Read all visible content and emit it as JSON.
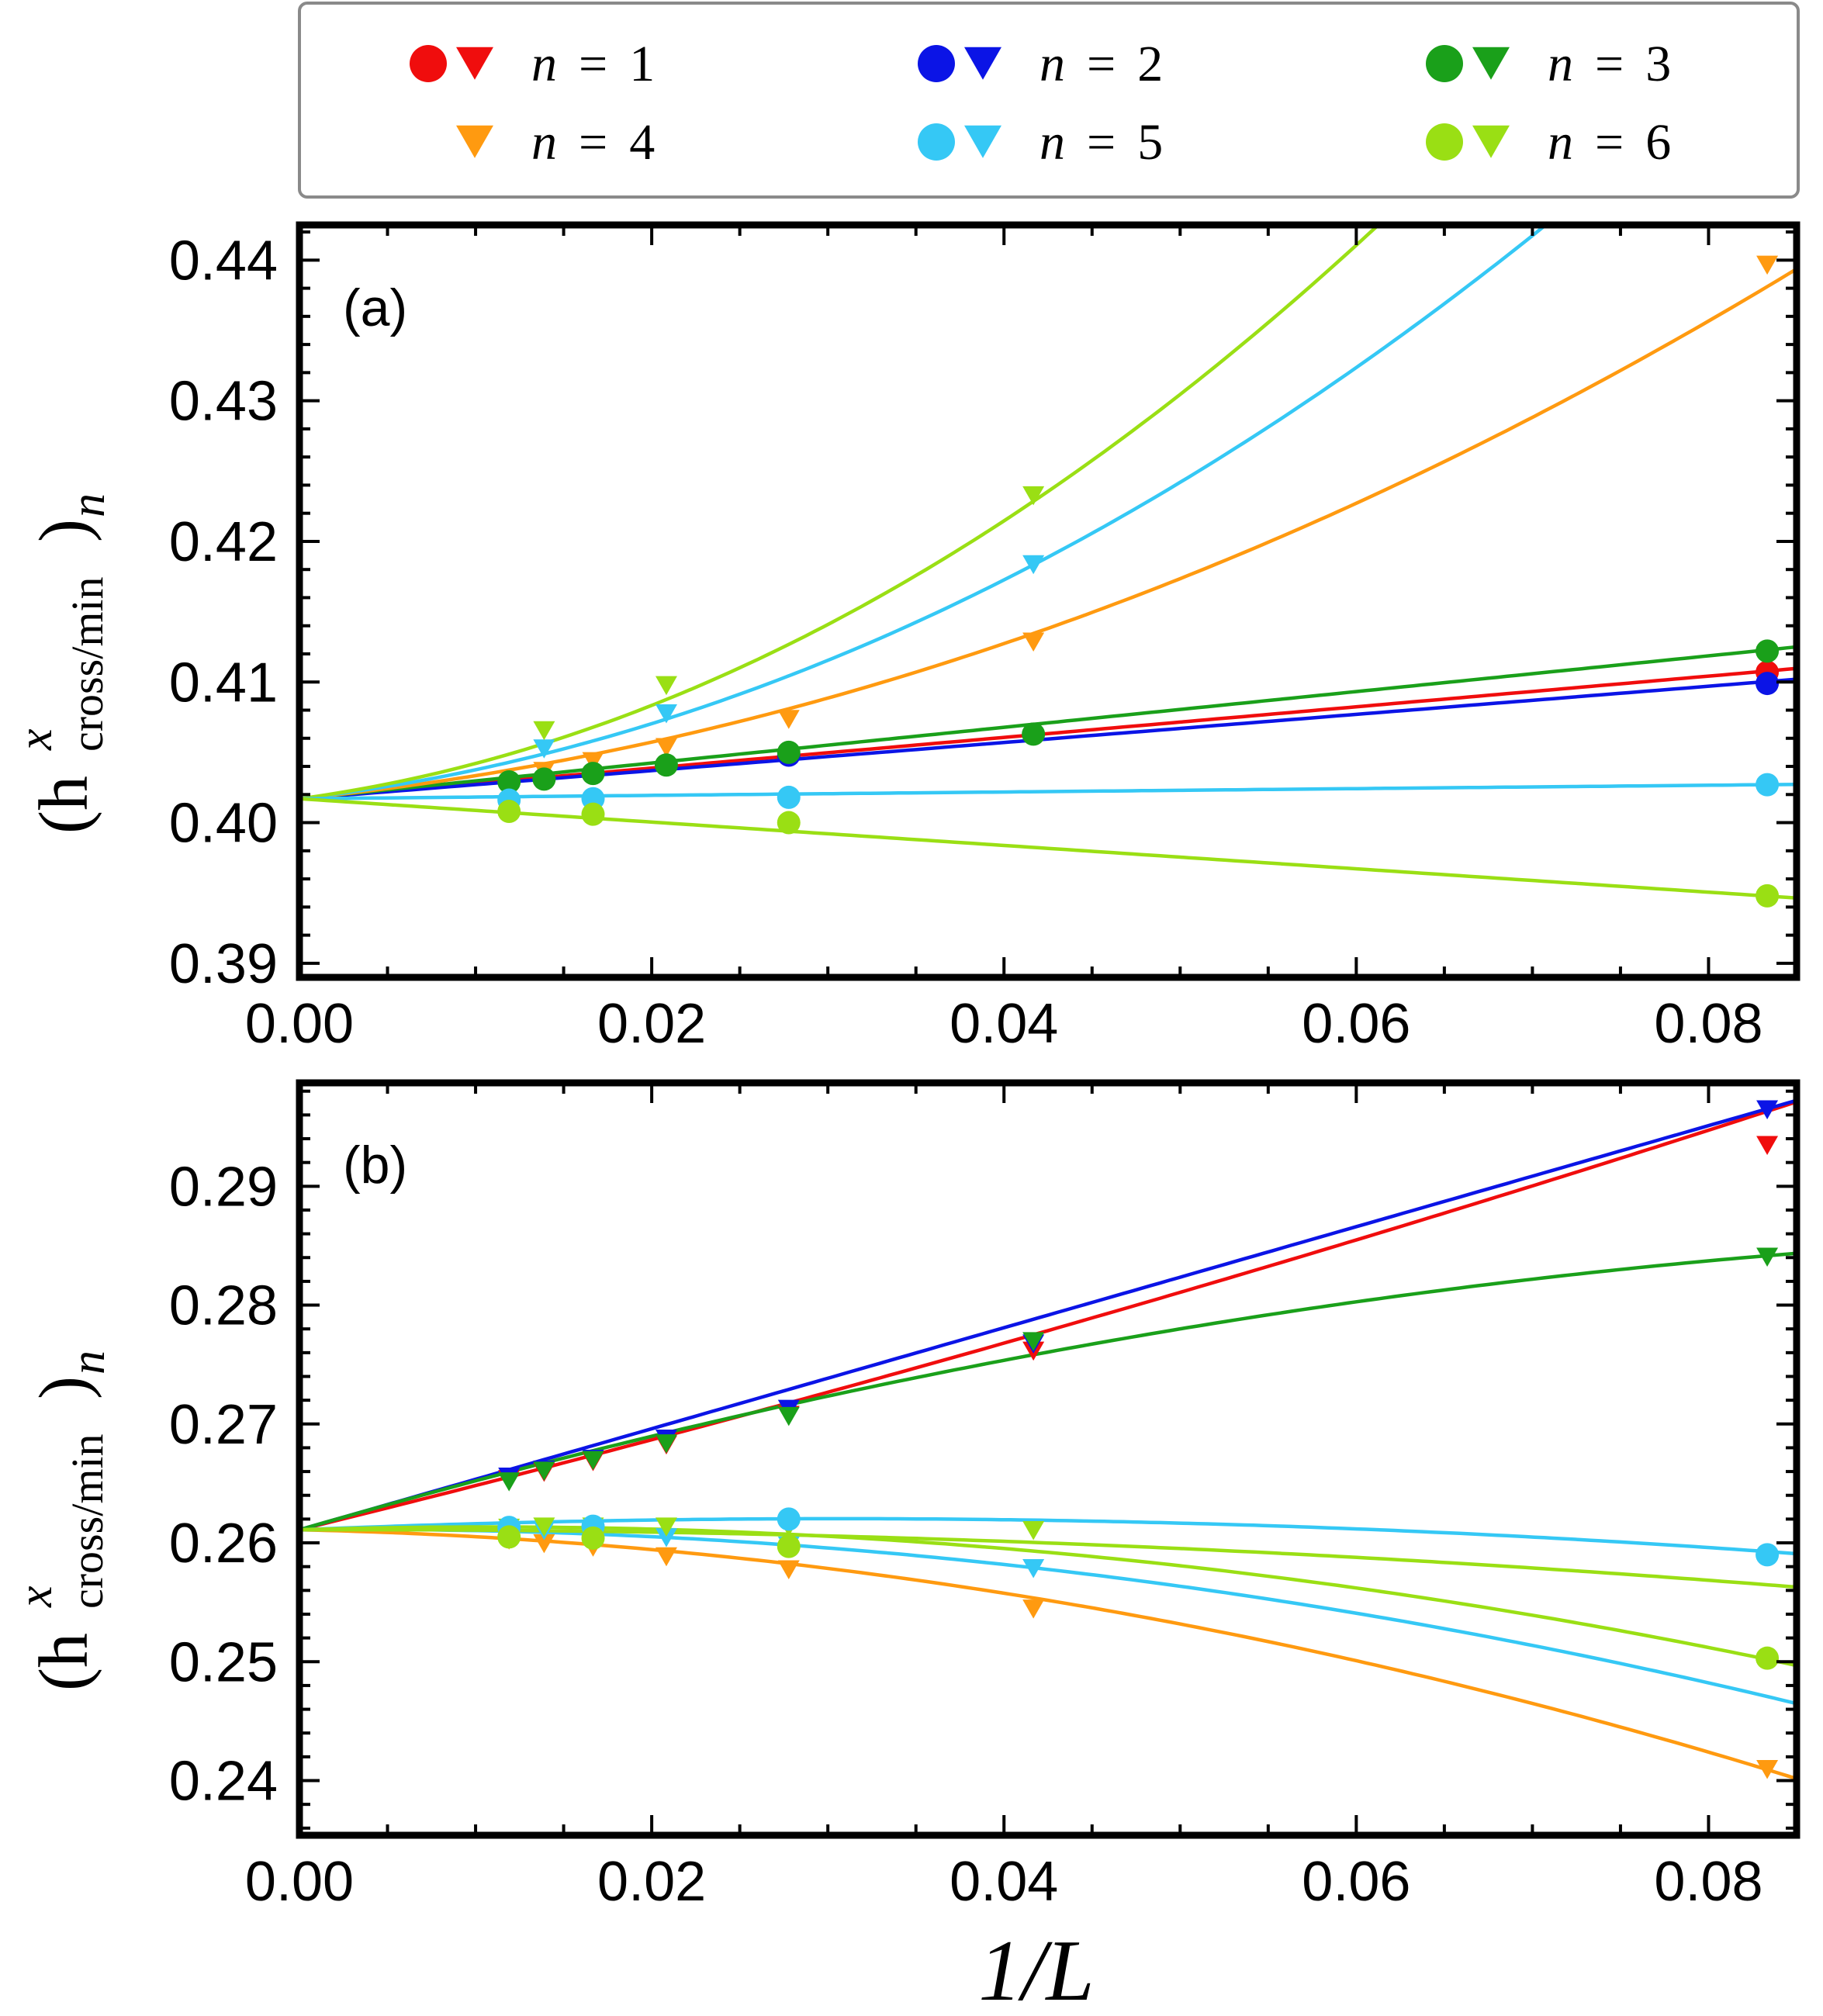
{
  "colors": {
    "n1": "#f00d0d",
    "n2": "#0b14e6",
    "n3": "#1aa01a",
    "n4": "#ff9a10",
    "n5": "#35c8f5",
    "n6": "#9adf14"
  },
  "legend": [
    {
      "key": "n1",
      "label": "n = 1",
      "markers": [
        "circle",
        "triangle"
      ]
    },
    {
      "key": "n2",
      "label": "n = 2",
      "markers": [
        "circle",
        "triangle"
      ]
    },
    {
      "key": "n3",
      "label": "n = 3",
      "markers": [
        "circle",
        "triangle"
      ]
    },
    {
      "key": "n4",
      "label": "n = 4",
      "markers": [
        "triangle"
      ]
    },
    {
      "key": "n5",
      "label": "n = 5",
      "markers": [
        "circle",
        "triangle"
      ]
    },
    {
      "key": "n6",
      "label": "n = 6",
      "markers": [
        "circle",
        "triangle"
      ]
    }
  ],
  "axis_labels": {
    "x": "1/L",
    "y_main": "(h",
    "y_sup": "x",
    "y_sub": "cross/min",
    "y_tail": ")",
    "y_n": "n"
  },
  "chart_data": [
    {
      "type": "scatter",
      "panel": "(a)",
      "xlim": [
        0,
        0.085
      ],
      "ylim": [
        0.389,
        0.4425
      ],
      "xticks": [
        0,
        0.02,
        0.04,
        0.06,
        0.08
      ],
      "xtick_labels": [
        "0.00",
        "0.02",
        "0.04",
        "0.06",
        "0.08"
      ],
      "yticks": [
        0.39,
        0.4,
        0.41,
        0.42,
        0.43,
        0.44
      ],
      "ytick_labels": [
        "0.39",
        "0.40",
        "0.41",
        "0.42",
        "0.43",
        "0.44"
      ],
      "fits": [
        {
          "key": "n1",
          "x0": 0,
          "y0": 0.4017,
          "slope": 0.109,
          "quad": 0
        },
        {
          "key": "n2",
          "x0": 0,
          "y0": 0.4017,
          "slope": 0.1,
          "quad": 0
        },
        {
          "key": "n3",
          "x0": 0,
          "y0": 0.4017,
          "slope": 0.127,
          "quad": 0
        },
        {
          "key": "n4",
          "x0": 0,
          "y0": 0.4017,
          "slope": 0.127,
          "quad": 3.72
        },
        {
          "key": "n5",
          "x0": 0,
          "y0": 0.4017,
          "slope": 0.145,
          "quad": 6.1
        },
        {
          "key": "n6",
          "x0": 0,
          "y0": 0.4017,
          "slope": 0.17,
          "quad": 8.1
        },
        {
          "key": "n5",
          "x0": 0,
          "y0": 0.4017,
          "slope": 0.012,
          "quad": 0
        },
        {
          "key": "n6",
          "x0": 0,
          "y0": 0.4017,
          "slope": -0.083,
          "quad": 0
        }
      ],
      "series": [
        {
          "key": "n4",
          "marker": "triangle",
          "x": [
            0.01389,
            0.01667,
            0.02083,
            0.02778,
            0.04167,
            0.08333
          ],
          "y": [
            0.4037,
            0.4044,
            0.4054,
            0.4074,
            0.4129,
            0.4397
          ]
        },
        {
          "key": "n5",
          "marker": "triangle",
          "x": [
            0.01389,
            0.02083,
            0.04167
          ],
          "y": [
            0.4053,
            0.4078,
            0.4184
          ]
        },
        {
          "key": "n6",
          "marker": "triangle",
          "x": [
            0.01389,
            0.02083,
            0.04167
          ],
          "y": [
            0.4066,
            0.4098,
            0.4233
          ]
        },
        {
          "key": "n1",
          "marker": "circle",
          "x": [
            0.08333
          ],
          "y": [
            0.4107
          ]
        },
        {
          "key": "n2",
          "marker": "circle",
          "x": [
            0.02778,
            0.08333
          ],
          "y": [
            0.4048,
            0.4099
          ]
        },
        {
          "key": "n3",
          "marker": "circle",
          "x": [
            0.0119,
            0.01389,
            0.01667,
            0.02083,
            0.02778,
            0.04167,
            0.08333
          ],
          "y": [
            0.4029,
            0.4031,
            0.4035,
            0.4041,
            0.405,
            0.4063,
            0.4122
          ]
        },
        {
          "key": "n5",
          "marker": "circle",
          "x": [
            0.0119,
            0.01667,
            0.02778,
            0.08333
          ],
          "y": [
            0.4016,
            0.4017,
            0.4018,
            0.4027
          ]
        },
        {
          "key": "n6",
          "marker": "circle",
          "x": [
            0.0119,
            0.01667,
            0.02778,
            0.08333
          ],
          "y": [
            0.4008,
            0.4006,
            0.4,
            0.3948
          ]
        }
      ]
    },
    {
      "type": "scatter",
      "panel": "(b)",
      "xlim": [
        0,
        0.085
      ],
      "ylim": [
        0.2354,
        0.2987
      ],
      "xticks": [
        0,
        0.02,
        0.04,
        0.06,
        0.08
      ],
      "xtick_labels": [
        "0.00",
        "0.02",
        "0.04",
        "0.06",
        "0.08"
      ],
      "yticks": [
        0.24,
        0.25,
        0.26,
        0.27,
        0.28,
        0.29
      ],
      "ytick_labels": [
        "0.24",
        "0.25",
        "0.26",
        "0.27",
        "0.28",
        "0.29"
      ],
      "fits": [
        {
          "key": "n1",
          "x0": 0,
          "y0": 0.2611,
          "slope": 0.365,
          "quad": 0.69
        },
        {
          "key": "n2",
          "x0": 0,
          "y0": 0.2611,
          "slope": 0.425,
          "quad": 0
        },
        {
          "key": "n3",
          "x0": 0,
          "y0": 0.2611,
          "slope": 0.43,
          "quad": -1.84
        },
        {
          "key": "n4",
          "x0": 0,
          "y0": 0.2611,
          "slope": -0.033,
          "quad": -2.51
        },
        {
          "key": "n5",
          "x0": 0,
          "y0": 0.2611,
          "slope": 0.015,
          "quad": -2.2
        },
        {
          "key": "n6",
          "x0": 0,
          "y0": 0.2611,
          "slope": 0.0045,
          "quad": -0.72
        },
        {
          "key": "n5",
          "x0": 0,
          "y0": 0.2611,
          "slope": 0.061,
          "quad": -0.996
        },
        {
          "key": "n6",
          "x0": 0,
          "y0": 0.2611,
          "slope": 0.045,
          "quad": -2.11
        }
      ],
      "series": [
        {
          "key": "n1",
          "marker": "triangle",
          "x": [
            0.0119,
            0.01389,
            0.01667,
            0.02083,
            0.02778,
            0.04167,
            0.08333
          ],
          "y": [
            0.2654,
            0.266,
            0.2669,
            0.2683,
            0.2708,
            0.2762,
            0.2935
          ]
        },
        {
          "key": "n2",
          "marker": "triangle",
          "x": [
            0.0119,
            0.01389,
            0.01667,
            0.02083,
            0.02778,
            0.04167,
            0.08333
          ],
          "y": [
            0.2656,
            0.2662,
            0.2671,
            0.2688,
            0.2713,
            0.2768,
            0.2965
          ]
        },
        {
          "key": "n3",
          "marker": "triangle",
          "x": [
            0.0119,
            0.01389,
            0.01667,
            0.02083,
            0.02778,
            0.04167,
            0.08333
          ],
          "y": [
            0.2652,
            0.2661,
            0.267,
            0.2684,
            0.2707,
            0.277,
            0.2841
          ]
        },
        {
          "key": "n4",
          "marker": "triangle",
          "x": [
            0.0119,
            0.01389,
            0.01667,
            0.02083,
            0.02778,
            0.04167,
            0.08333
          ],
          "y": [
            0.2603,
            0.26,
            0.2597,
            0.2589,
            0.2578,
            0.2545,
            0.241
          ]
        },
        {
          "key": "n5",
          "marker": "triangle",
          "x": [
            0.0119,
            0.01389,
            0.01667,
            0.02083,
            0.02778,
            0.04167
          ],
          "y": [
            0.2609,
            0.2611,
            0.261,
            0.2605,
            0.2598,
            0.2579
          ]
        },
        {
          "key": "n6",
          "marker": "triangle",
          "x": [
            0.0119,
            0.01389,
            0.01667,
            0.02083,
            0.02778,
            0.04167
          ],
          "y": [
            0.2613,
            0.2614,
            0.2614,
            0.2614,
            0.2614,
            0.2611
          ]
        },
        {
          "key": "n5",
          "marker": "circle",
          "x": [
            0.0119,
            0.01667,
            0.02778,
            0.08333
          ],
          "y": [
            0.2613,
            0.2614,
            0.262,
            0.259
          ]
        },
        {
          "key": "n6",
          "marker": "circle",
          "x": [
            0.0119,
            0.01667,
            0.02778,
            0.08333
          ],
          "y": [
            0.2605,
            0.2604,
            0.2597,
            0.2503
          ]
        }
      ]
    }
  ]
}
